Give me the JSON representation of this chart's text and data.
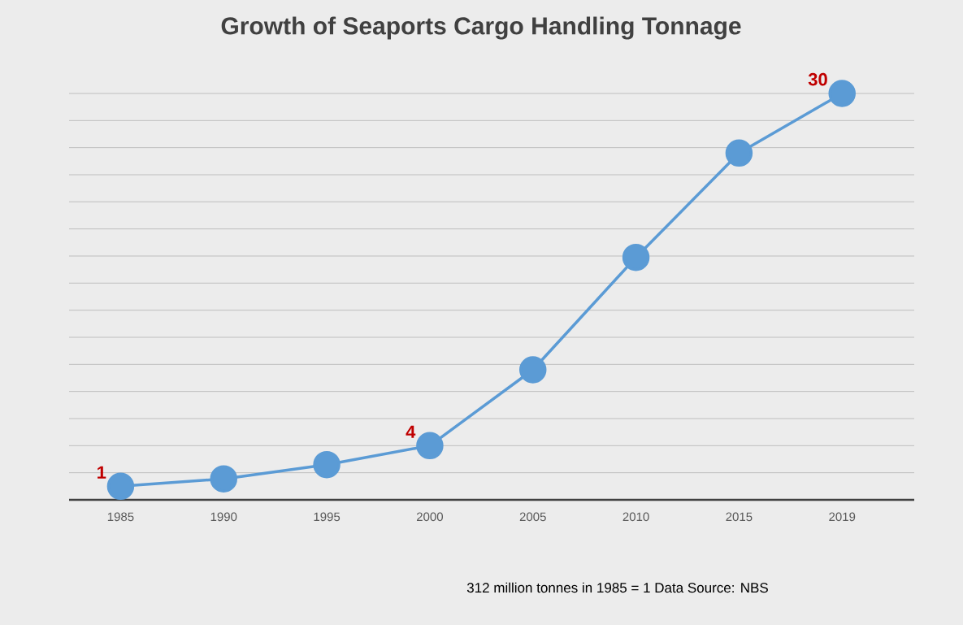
{
  "chart_data": {
    "type": "line",
    "title": "Growth of Seaports Cargo Handling Tonnage",
    "categories": [
      "1985",
      "1990",
      "1995",
      "2000",
      "2005",
      "2010",
      "2015",
      "2019"
    ],
    "values": [
      1,
      1.55,
      2.6,
      4,
      9.6,
      17.9,
      25.6,
      30
    ],
    "value_labels": [
      "1",
      null,
      null,
      "4",
      null,
      null,
      null,
      "30"
    ],
    "color": "#5b9bd5",
    "marker": "circle",
    "line_style": "solid",
    "grid": "y",
    "tick_labels": "x",
    "annotations": [
      "312 million tonnes in 1985 = 1   Data Source: NBS"
    ]
  }
}
